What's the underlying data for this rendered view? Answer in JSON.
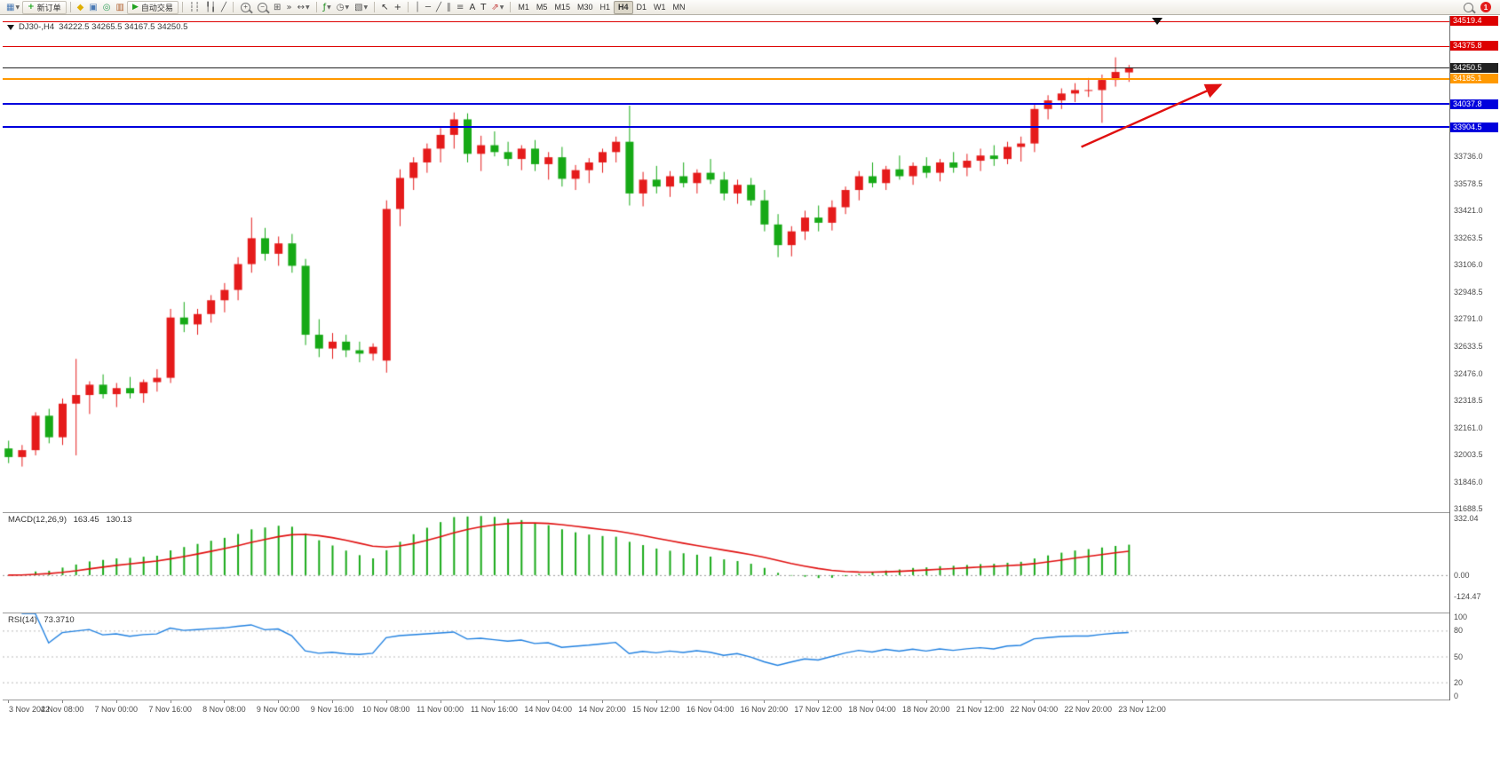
{
  "toolbar": {
    "notification_count": "1",
    "active_timeframe": "H4",
    "timeframes": [
      "M1",
      "M5",
      "M15",
      "M30",
      "H1",
      "H4",
      "D1",
      "W1",
      "MN"
    ],
    "items": [
      {
        "kind": "icon",
        "name": "new-chart-icon",
        "glyph": "▦",
        "color": "#4a7ab5",
        "caret": true
      },
      {
        "kind": "button",
        "name": "new-order-button",
        "icon_glyph": "+",
        "icon_color": "#17a317",
        "label": "新订单"
      },
      {
        "kind": "sep"
      },
      {
        "kind": "icon",
        "name": "market-watch-icon",
        "glyph": "◆",
        "color": "#dfae00"
      },
      {
        "kind": "icon",
        "name": "data-window-icon",
        "glyph": "▣",
        "color": "#4a7ab5"
      },
      {
        "kind": "icon",
        "name": "navigator-icon",
        "glyph": "◎",
        "color": "#2e9e5b"
      },
      {
        "kind": "icon",
        "name": "terminal-icon",
        "glyph": "▥",
        "color": "#b06030"
      },
      {
        "kind": "button",
        "name": "autotrading-button",
        "icon_glyph": "▶",
        "icon_color": "#21a321",
        "label": "自动交易"
      },
      {
        "kind": "sep"
      },
      {
        "kind": "icon",
        "name": "bar-chart-type-icon",
        "glyph": "┆┆",
        "color": "#555555"
      },
      {
        "kind": "icon",
        "name": "candlestick-chart-type-icon",
        "glyph": "╿╽",
        "color": "#555555"
      },
      {
        "kind": "icon",
        "name": "line-chart-type-icon",
        "glyph": "╱",
        "color": "#555555"
      },
      {
        "kind": "sep"
      },
      {
        "kind": "zoom",
        "name": "zoom-in-icon",
        "glyph": "+"
      },
      {
        "kind": "zoom",
        "name": "zoom-out-icon",
        "glyph": "−"
      },
      {
        "kind": "icon",
        "name": "tile-windows-icon",
        "glyph": "⊞",
        "color": "#555555"
      },
      {
        "kind": "icon",
        "name": "auto-scroll-icon",
        "glyph": "»",
        "color": "#555555"
      },
      {
        "kind": "icon",
        "name": "chart-shift-icon",
        "glyph": "↔",
        "color": "#555555",
        "caret": true
      },
      {
        "kind": "sep"
      },
      {
        "kind": "icon",
        "name": "indicators-icon",
        "glyph": "ƒ",
        "color": "#1a8a1a",
        "caret": true
      },
      {
        "kind": "icon",
        "name": "periods-icon",
        "glyph": "◷",
        "color": "#555555",
        "caret": true
      },
      {
        "kind": "icon",
        "name": "templates-icon",
        "glyph": "▧",
        "color": "#555555",
        "caret": true
      },
      {
        "kind": "sep"
      },
      {
        "kind": "icon",
        "name": "cursor-icon",
        "glyph": "↖",
        "color": "#333333"
      },
      {
        "kind": "icon",
        "name": "crosshair-icon",
        "glyph": "+",
        "color": "#333333"
      },
      {
        "kind": "sep"
      },
      {
        "kind": "icon",
        "name": "vertical-line-icon",
        "glyph": "│",
        "color": "#555555"
      },
      {
        "kind": "icon",
        "name": "horizontal-line-icon",
        "glyph": "─",
        "color": "#555555"
      },
      {
        "kind": "icon",
        "name": "trendline-icon",
        "glyph": "╱",
        "color": "#555555"
      },
      {
        "kind": "icon",
        "name": "equidistant-channel-icon",
        "glyph": "∥",
        "color": "#555555"
      },
      {
        "kind": "icon",
        "name": "fibonacci-icon",
        "glyph": "≡",
        "color": "#555555"
      },
      {
        "kind": "icon",
        "name": "text-icon",
        "glyph": "A",
        "color": "#333333"
      },
      {
        "kind": "icon",
        "name": "text-label-icon",
        "glyph": "T",
        "color": "#333333"
      },
      {
        "kind": "icon",
        "name": "arrows-icon",
        "glyph": "⇗",
        "color": "#c03333",
        "caret": true
      },
      {
        "kind": "sep"
      },
      {
        "kind": "tfs"
      },
      {
        "kind": "spacer"
      },
      {
        "kind": "search",
        "name": "search-icon"
      },
      {
        "kind": "badge",
        "name": "notification-badge"
      }
    ]
  },
  "chart": {
    "symbol_title": "DJ30-,H4",
    "ohlc_text": "34222.5 34265.5 34167.5 34250.5"
  },
  "chart_data": {
    "type": "candlestick",
    "title": "DJ30-,H4",
    "symbol": "DJ30-",
    "timeframe": "H4",
    "last_ohlc": {
      "open": 34222.5,
      "high": 34265.5,
      "low": 34167.5,
      "close": 34250.5
    },
    "ylim": [
      31670,
      34550
    ],
    "up_color": "#e51b1b",
    "down_color": "#16a916",
    "label_every": 4,
    "time_labels": [
      "3 Nov 2022",
      "4 Nov 08:00",
      "7 Nov 00:00",
      "7 Nov 16:00",
      "8 Nov 08:00",
      "9 Nov 00:00",
      "9 Nov 16:00",
      "10 Nov 08:00",
      "11 Nov 00:00",
      "11 Nov 16:00",
      "14 Nov 04:00",
      "14 Nov 20:00",
      "15 Nov 12:00",
      "16 Nov 04:00",
      "16 Nov 20:00",
      "17 Nov 12:00",
      "18 Nov 04:00",
      "18 Nov 20:00",
      "21 Nov 12:00",
      "22 Nov 04:00",
      "22 Nov 20:00",
      "23 Nov 12:00"
    ],
    "price_axis_ticks": [
      {
        "label": "33736.0",
        "price": 33736.0
      },
      {
        "label": "33578.5",
        "price": 33578.5
      },
      {
        "label": "33421.0",
        "price": 33421.0
      },
      {
        "label": "33263.5",
        "price": 33263.5
      },
      {
        "label": "33106.0",
        "price": 33106.0
      },
      {
        "label": "32948.5",
        "price": 32948.5
      },
      {
        "label": "32791.0",
        "price": 32791.0
      },
      {
        "label": "32633.5",
        "price": 32633.5
      },
      {
        "label": "32476.0",
        "price": 32476.0
      },
      {
        "label": "32318.5",
        "price": 32318.5
      },
      {
        "label": "32161.0",
        "price": 32161.0
      },
      {
        "label": "32003.5",
        "price": 32003.5
      },
      {
        "label": "31846.0",
        "price": 31846.0
      },
      {
        "label": "31688.5",
        "price": 31688.5
      }
    ],
    "price_lines": [
      {
        "label": "34519.4",
        "price": 34519.4,
        "color": "#dd0000",
        "line_width": 1
      },
      {
        "label": "34375.8",
        "price": 34375.8,
        "color": "#dd0000",
        "line_width": 1
      },
      {
        "label": "34250.5",
        "price": 34250.5,
        "color": "#222222",
        "line_width": 1,
        "is_current": true
      },
      {
        "label": "34185.1",
        "price": 34185.1,
        "color": "#ff9900",
        "line_width": 2
      },
      {
        "label": "34037.8",
        "price": 34037.8,
        "color": "#0000dd",
        "line_width": 2
      },
      {
        "label": "33904.5",
        "price": 33904.5,
        "color": "#0000dd",
        "line_width": 2
      }
    ],
    "candles": [
      [
        32040,
        32085,
        31955,
        31990
      ],
      [
        31990,
        32060,
        31935,
        32030
      ],
      [
        32030,
        32250,
        32000,
        32230
      ],
      [
        32230,
        32270,
        32070,
        32105
      ],
      [
        32105,
        32330,
        32060,
        32300
      ],
      [
        32300,
        32560,
        32000,
        32350
      ],
      [
        32350,
        32430,
        32240,
        32410
      ],
      [
        32410,
        32470,
        32330,
        32355
      ],
      [
        32355,
        32420,
        32280,
        32390
      ],
      [
        32390,
        32455,
        32330,
        32360
      ],
      [
        32360,
        32440,
        32305,
        32425
      ],
      [
        32425,
        32500,
        32370,
        32450
      ],
      [
        32450,
        32850,
        32420,
        32800
      ],
      [
        32800,
        32890,
        32715,
        32760
      ],
      [
        32760,
        32850,
        32700,
        32820
      ],
      [
        32820,
        32930,
        32770,
        32900
      ],
      [
        32900,
        33000,
        32830,
        32960
      ],
      [
        32960,
        33150,
        32900,
        33110
      ],
      [
        33110,
        33380,
        33060,
        33260
      ],
      [
        33260,
        33320,
        33130,
        33170
      ],
      [
        33170,
        33270,
        33100,
        33230
      ],
      [
        33230,
        33285,
        33060,
        33100
      ],
      [
        33100,
        33140,
        32640,
        32700
      ],
      [
        32700,
        32790,
        32570,
        32620
      ],
      [
        32620,
        32710,
        32560,
        32660
      ],
      [
        32660,
        32700,
        32570,
        32610
      ],
      [
        32610,
        32660,
        32540,
        32590
      ],
      [
        32590,
        32650,
        32550,
        32630
      ],
      [
        32550,
        33480,
        32480,
        33430
      ],
      [
        33430,
        33660,
        33330,
        33610
      ],
      [
        33610,
        33730,
        33540,
        33700
      ],
      [
        33700,
        33810,
        33640,
        33780
      ],
      [
        33780,
        33900,
        33700,
        33860
      ],
      [
        33860,
        33990,
        33780,
        33950
      ],
      [
        33950,
        33985,
        33700,
        33750
      ],
      [
        33750,
        33855,
        33650,
        33800
      ],
      [
        33800,
        33880,
        33735,
        33760
      ],
      [
        33760,
        33820,
        33680,
        33720
      ],
      [
        33720,
        33800,
        33655,
        33780
      ],
      [
        33780,
        33830,
        33650,
        33690
      ],
      [
        33690,
        33760,
        33600,
        33730
      ],
      [
        33730,
        33790,
        33560,
        33605
      ],
      [
        33605,
        33685,
        33540,
        33655
      ],
      [
        33655,
        33725,
        33580,
        33700
      ],
      [
        33700,
        33780,
        33640,
        33760
      ],
      [
        33760,
        33850,
        33700,
        33820
      ],
      [
        33820,
        34030,
        33450,
        33520
      ],
      [
        33520,
        33645,
        33445,
        33600
      ],
      [
        33600,
        33680,
        33520,
        33560
      ],
      [
        33560,
        33650,
        33500,
        33620
      ],
      [
        33620,
        33700,
        33555,
        33580
      ],
      [
        33580,
        33660,
        33520,
        33640
      ],
      [
        33640,
        33720,
        33575,
        33600
      ],
      [
        33600,
        33645,
        33480,
        33520
      ],
      [
        33520,
        33600,
        33460,
        33570
      ],
      [
        33570,
        33610,
        33450,
        33480
      ],
      [
        33480,
        33540,
        33300,
        33340
      ],
      [
        33340,
        33400,
        33150,
        33220
      ],
      [
        33220,
        33330,
        33155,
        33300
      ],
      [
        33300,
        33420,
        33250,
        33380
      ],
      [
        33380,
        33450,
        33300,
        33350
      ],
      [
        33350,
        33480,
        33305,
        33440
      ],
      [
        33440,
        33560,
        33400,
        33540
      ],
      [
        33540,
        33650,
        33480,
        33620
      ],
      [
        33620,
        33700,
        33555,
        33580
      ],
      [
        33580,
        33680,
        33540,
        33660
      ],
      [
        33660,
        33740,
        33600,
        33620
      ],
      [
        33620,
        33700,
        33570,
        33680
      ],
      [
        33680,
        33730,
        33610,
        33640
      ],
      [
        33640,
        33720,
        33590,
        33700
      ],
      [
        33700,
        33760,
        33640,
        33670
      ],
      [
        33670,
        33750,
        33620,
        33710
      ],
      [
        33710,
        33780,
        33650,
        33740
      ],
      [
        33740,
        33800,
        33680,
        33720
      ],
      [
        33720,
        33820,
        33690,
        33790
      ],
      [
        33790,
        33850,
        33705,
        33810
      ],
      [
        33810,
        34040,
        33760,
        34010
      ],
      [
        34010,
        34090,
        33950,
        34060
      ],
      [
        34060,
        34130,
        34010,
        34100
      ],
      [
        34100,
        34160,
        34050,
        34120
      ],
      [
        34120,
        34190,
        34080,
        34120
      ],
      [
        34120,
        34210,
        33930,
        34180
      ],
      [
        34180,
        34310,
        34140,
        34225
      ],
      [
        34222.5,
        34265.5,
        34167.5,
        34250.5
      ]
    ],
    "indicators": {
      "macd": {
        "label": "MACD(12,26,9)",
        "fast": 12,
        "slow": 26,
        "signal": 9,
        "value_main": "163.45",
        "value_signal": "130.13",
        "ylim": [
          -220,
          365
        ],
        "axis_ticks": [
          {
            "label": "332.04",
            "value": 332.04
          },
          {
            "label": "0.00",
            "value": 0
          },
          {
            "label": "-124.47",
            "value": -124.47
          }
        ],
        "histogram_color": "#16a916",
        "signal_color": "#e01010"
      },
      "rsi": {
        "label": "RSI(14)",
        "period": 14,
        "value": "73.3710",
        "ylim": [
          0,
          100
        ],
        "axis_ticks": [
          {
            "label": "100",
            "value": 100
          },
          {
            "label": "80",
            "value": 80
          },
          {
            "label": "50",
            "value": 50
          },
          {
            "label": "20",
            "value": 20
          },
          {
            "label": "0",
            "value": 0
          }
        ],
        "levels": [
          80,
          50,
          20
        ],
        "line_color": "#2080e0"
      }
    },
    "annotations": [
      {
        "type": "trend-arrow",
        "color": "#e01010",
        "i1": 79.5,
        "p1": 33790,
        "i2": 89.8,
        "p2": 34150
      }
    ]
  }
}
